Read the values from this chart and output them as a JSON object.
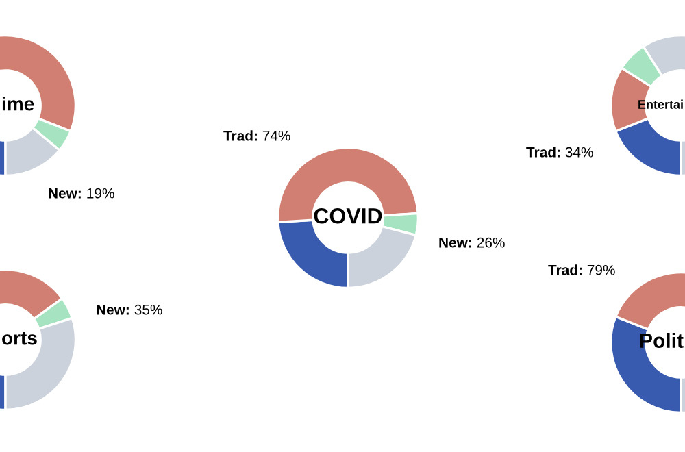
{
  "chart_data": [
    {
      "type": "donut",
      "title": "ime",
      "categories": [
        null,
        null,
        null,
        null
      ],
      "values": [
        22,
        59,
        5,
        14
      ],
      "colors": [
        "#385bb0",
        "#d17f72",
        "#a6e3c0",
        "#cbd2dc"
      ],
      "annotations": [
        "New: 19%"
      ]
    },
    {
      "type": "donut",
      "title": "orts",
      "categories": [
        null,
        null,
        null,
        null
      ],
      "values": [
        27,
        38,
        5,
        30
      ],
      "colors": [
        "#385bb0",
        "#d17f72",
        "#a6e3c0",
        "#cbd2dc"
      ],
      "annotations": [
        "New: 35%"
      ]
    },
    {
      "type": "donut",
      "title": "COVID",
      "categories": [
        null,
        null,
        null,
        null
      ],
      "values": [
        24,
        50,
        5,
        21
      ],
      "colors": [
        "#385bb0",
        "#d17f72",
        "#a6e3c0",
        "#cbd2dc"
      ],
      "annotations": [
        "Trad: 74%",
        "New: 26%"
      ]
    },
    {
      "type": "donut",
      "title": "Entertai",
      "categories": [
        null,
        null,
        null,
        null
      ],
      "values": [
        19,
        15,
        7,
        59
      ],
      "colors": [
        "#385bb0",
        "#d17f72",
        "#a6e3c0",
        "#cbd2dc"
      ],
      "annotations": [
        "Trad: 34%"
      ]
    },
    {
      "type": "donut",
      "title": "Polit",
      "categories": [
        null,
        null,
        null,
        null
      ],
      "values": [
        31,
        48,
        null,
        21
      ],
      "colors": [
        "#385bb0",
        "#d17f72",
        "#a6e3c0",
        "#cbd2dc"
      ],
      "annotations": [
        "Trad: 79%"
      ]
    }
  ]
}
